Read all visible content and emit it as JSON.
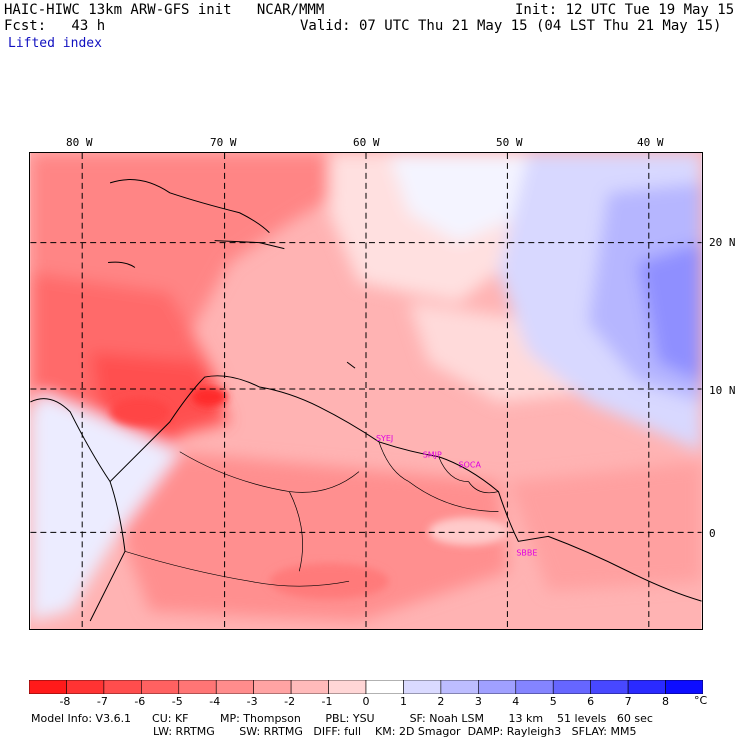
{
  "header": {
    "model_line": "HAIC-HIWC 13km ARW-GFS init   NCAR/MMM",
    "init": "Init: 12 UTC Tue 19 May 15",
    "fcst": "Fcst:   43 h",
    "valid": "Valid: 07 UTC Thu 21 May 15 (04 LST Thu 21 May 15)",
    "field": "Lifted index"
  },
  "lon_labels": [
    "80 W",
    "70 W",
    "60 W",
    "50 W",
    "40 W"
  ],
  "lat_labels": [
    "20 N",
    "10 N",
    "0"
  ],
  "stations": [
    "SYEJ",
    "SMJP",
    "SOCA",
    "SBBE"
  ],
  "colorbar": {
    "labels": [
      "-8",
      "-7",
      "-6",
      "-5",
      "-4",
      "-3",
      "-2",
      "-1",
      "0",
      "1",
      "2",
      "3",
      "4",
      "5",
      "6",
      "7",
      "8"
    ],
    "unit": "°C",
    "colors": [
      "#ff1a1a",
      "#ff3333",
      "#ff4d4d",
      "#ff6161",
      "#ff7575",
      "#ff8c8c",
      "#ffa3a3",
      "#ffbaba",
      "#ffd6d6",
      "#ffffff",
      "#dadaff",
      "#bdbdff",
      "#a0a0ff",
      "#8484ff",
      "#6666ff",
      "#4848ff",
      "#2a2aff",
      "#0d0dff"
    ]
  },
  "footer": {
    "line1": "Model Info: V3.6.1      CU: KF         MP: Thompson       PBL: YSU          SF: Noah LSM       13 km    51 levels   60 sec",
    "line2": "LW: RRTMG       SW: RRTMG   DIFF: full    KM: 2D Smagor  DAMP: Rayleigh3   SFLAY: MM5"
  }
}
